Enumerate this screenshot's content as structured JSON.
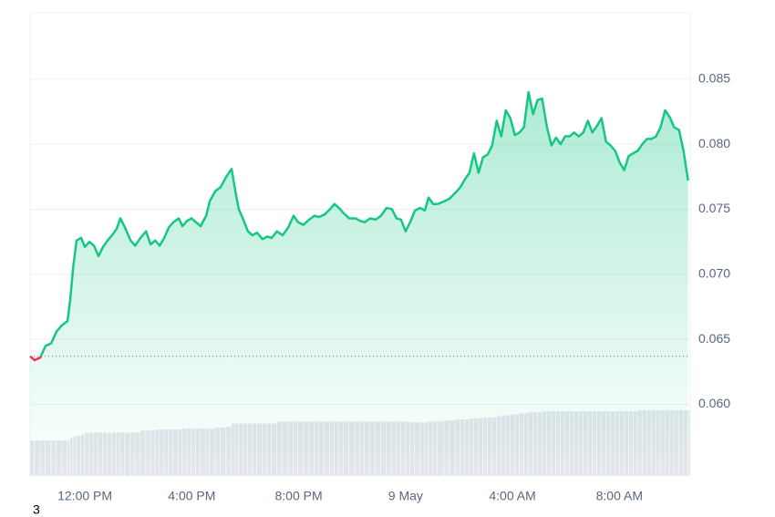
{
  "chart_data": {
    "type": "line",
    "color": "#16c784",
    "down_color": "#ea3943",
    "volume_color": "#e3e6ec",
    "grid": true,
    "baseline": 0.0637,
    "ylim": [
      0.0545,
      0.0901
    ],
    "yticks": [
      {
        "value": 0.06,
        "label": "0.060"
      },
      0.065,
      {
        "value": 0.07,
        "label": "0.070"
      },
      0.075,
      {
        "value": 0.08,
        "label": "0.080"
      },
      0.085
    ],
    "xlim": [
      9.95,
      34.65
    ],
    "xticks": [
      {
        "value": 12,
        "label": "12:00 PM"
      },
      {
        "value": 16,
        "label": "4:00 PM"
      },
      {
        "value": 20,
        "label": "8:00 PM"
      },
      {
        "value": 24,
        "label": "9 May"
      },
      {
        "value": 28,
        "label": "4:00 AM"
      },
      {
        "value": 32,
        "label": "8:00 AM"
      }
    ],
    "x": [
      9.95,
      10.12,
      10.33,
      10.53,
      10.74,
      10.94,
      11.15,
      11.35,
      11.45,
      11.56,
      11.69,
      11.86,
      12.0,
      12.17,
      12.34,
      12.51,
      12.68,
      12.85,
      13.02,
      13.19,
      13.33,
      13.5,
      13.71,
      13.88,
      14.08,
      14.29,
      14.46,
      14.63,
      14.8,
      14.97,
      15.14,
      15.31,
      15.51,
      15.65,
      15.82,
      15.99,
      16.16,
      16.33,
      16.54,
      16.67,
      16.88,
      17.08,
      17.29,
      17.49,
      17.63,
      17.76,
      17.93,
      18.1,
      18.27,
      18.44,
      18.65,
      18.82,
      18.99,
      19.19,
      19.4,
      19.61,
      19.81,
      19.98,
      20.18,
      20.39,
      20.59,
      20.76,
      20.97,
      21.17,
      21.34,
      21.51,
      21.68,
      21.89,
      22.13,
      22.3,
      22.47,
      22.67,
      22.88,
      23.08,
      23.29,
      23.49,
      23.66,
      23.83,
      24.0,
      24.17,
      24.35,
      24.55,
      24.72,
      24.86,
      25.03,
      25.2,
      25.44,
      25.64,
      25.88,
      26.05,
      26.22,
      26.39,
      26.56,
      26.73,
      26.9,
      27.07,
      27.24,
      27.41,
      27.58,
      27.75,
      27.92,
      28.09,
      28.26,
      28.43,
      28.6,
      28.77,
      28.94,
      29.11,
      29.29,
      29.46,
      29.63,
      29.8,
      29.97,
      30.14,
      30.31,
      30.48,
      30.65,
      30.82,
      30.99,
      31.16,
      31.33,
      31.5,
      31.67,
      31.84,
      32.01,
      32.18,
      32.35,
      32.52,
      32.69,
      32.86,
      33.03,
      33.2,
      33.37,
      33.54,
      33.71,
      33.88,
      34.05,
      34.23,
      34.4,
      34.57
    ],
    "values": [
      0.0637,
      0.0634,
      0.0636,
      0.0645,
      0.0647,
      0.0656,
      0.0661,
      0.0664,
      0.068,
      0.0705,
      0.0726,
      0.0728,
      0.0721,
      0.0725,
      0.0722,
      0.0714,
      0.0721,
      0.0726,
      0.073,
      0.0735,
      0.0743,
      0.0736,
      0.0726,
      0.0722,
      0.0728,
      0.0733,
      0.0723,
      0.0726,
      0.0722,
      0.0728,
      0.0736,
      0.074,
      0.0743,
      0.0737,
      0.0741,
      0.0743,
      0.074,
      0.0737,
      0.0745,
      0.0756,
      0.0764,
      0.0767,
      0.0775,
      0.0781,
      0.0764,
      0.075,
      0.0742,
      0.0733,
      0.073,
      0.0732,
      0.0727,
      0.0729,
      0.0728,
      0.0733,
      0.073,
      0.0736,
      0.0745,
      0.074,
      0.0738,
      0.0742,
      0.0745,
      0.0744,
      0.0746,
      0.075,
      0.0754,
      0.0751,
      0.0747,
      0.0743,
      0.0743,
      0.0741,
      0.074,
      0.0743,
      0.0742,
      0.0745,
      0.0751,
      0.075,
      0.0743,
      0.0742,
      0.0733,
      0.074,
      0.0749,
      0.0751,
      0.0749,
      0.0759,
      0.0754,
      0.0754,
      0.0756,
      0.0758,
      0.0763,
      0.0767,
      0.0773,
      0.0778,
      0.0793,
      0.0778,
      0.079,
      0.0792,
      0.0799,
      0.0818,
      0.0806,
      0.0826,
      0.082,
      0.0807,
      0.0809,
      0.0813,
      0.084,
      0.0823,
      0.0834,
      0.0835,
      0.0813,
      0.0799,
      0.0805,
      0.08,
      0.0806,
      0.0806,
      0.0809,
      0.0806,
      0.0809,
      0.0818,
      0.0809,
      0.0814,
      0.082,
      0.0802,
      0.0799,
      0.0795,
      0.0786,
      0.078,
      0.0791,
      0.0793,
      0.0795,
      0.08,
      0.0804,
      0.0804,
      0.0806,
      0.0813,
      0.0826,
      0.0821,
      0.0813,
      0.0811,
      0.0795,
      0.0772
    ],
    "volume": [
      35,
      35,
      35,
      35,
      35,
      35,
      35,
      35,
      38,
      39,
      40,
      41,
      43,
      43,
      43,
      43,
      43,
      43,
      43,
      43,
      43,
      43,
      43,
      43,
      45,
      45,
      45,
      46,
      46,
      46,
      46,
      46,
      46,
      47,
      47,
      47,
      47,
      47,
      47,
      47,
      48,
      48,
      49,
      52,
      52,
      52,
      52,
      52,
      52,
      52,
      52,
      52,
      52,
      54,
      54,
      54,
      54,
      54,
      54,
      54,
      54,
      54,
      54,
      54,
      54,
      54,
      54,
      54,
      54,
      54,
      54,
      54,
      54,
      54,
      54,
      54,
      54,
      54,
      54,
      53,
      53,
      53,
      53,
      54,
      54,
      54,
      55,
      55,
      56,
      56,
      56,
      57,
      57,
      57,
      58,
      58,
      58,
      59,
      60,
      60,
      61,
      61,
      62,
      62,
      63,
      63,
      63,
      64,
      64,
      64,
      64,
      64,
      64,
      64,
      64,
      64,
      64,
      64,
      64,
      64,
      64,
      64,
      64,
      64,
      64,
      64,
      64,
      64,
      65,
      65,
      65,
      65,
      65,
      65,
      65,
      65,
      65,
      65,
      65,
      65
    ],
    "corner_label": "3"
  }
}
